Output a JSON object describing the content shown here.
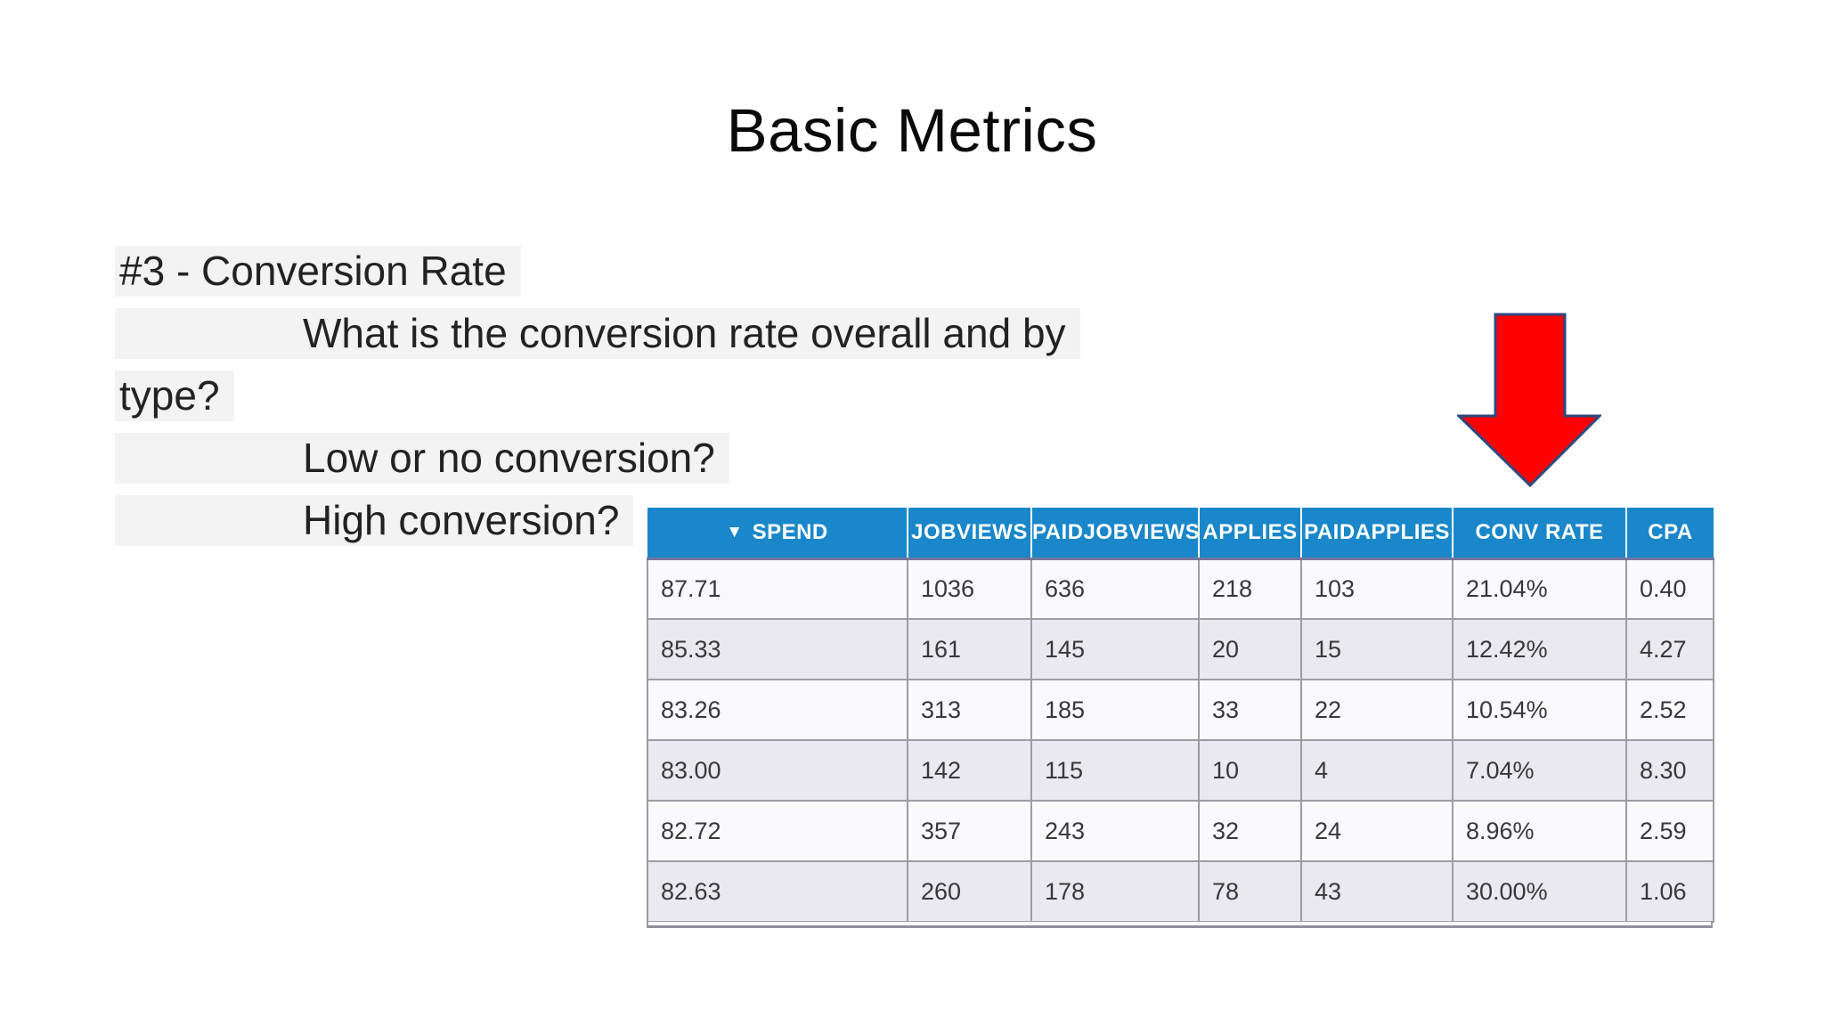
{
  "title": "Basic Metrics",
  "notes": [
    {
      "text": "#3 - Conversion Rate",
      "indent": false
    },
    {
      "text": "What is the conversion rate overall and by",
      "indent": true
    },
    {
      "text": "type?",
      "indent": false
    },
    {
      "text": "Low or no conversion?",
      "indent": true
    },
    {
      "text": "High conversion?",
      "indent": true
    }
  ],
  "table": {
    "columns": [
      {
        "label": "SPEND",
        "sort_icon": "▼",
        "sort_state": "descending"
      },
      {
        "label": "JOBVIEWS"
      },
      {
        "label": "PAIDJOBVIEWS"
      },
      {
        "label": "APPLIES"
      },
      {
        "label": "PAIDAPPLIES"
      },
      {
        "label": "CONV RATE"
      },
      {
        "label": "CPA"
      }
    ],
    "rows": [
      [
        "87.71",
        "1036",
        "636",
        "218",
        "103",
        "21.04%",
        "0.40"
      ],
      [
        "85.33",
        "161",
        "145",
        "20",
        "15",
        "12.42%",
        "4.27"
      ],
      [
        "83.26",
        "313",
        "185",
        "33",
        "22",
        "10.54%",
        "2.52"
      ],
      [
        "83.00",
        "142",
        "115",
        "10",
        "4",
        "7.04%",
        "8.30"
      ],
      [
        "82.72",
        "357",
        "243",
        "32",
        "24",
        "8.96%",
        "2.59"
      ],
      [
        "82.63",
        "260",
        "178",
        "78",
        "43",
        "30.00%",
        "1.06"
      ]
    ]
  },
  "icons": {
    "sort_desc": "▼",
    "red_arrow": "red-down-arrow"
  },
  "colors": {
    "header_bg": "#1987c9",
    "header_border": "#75759a",
    "row_odd": "#fafafd",
    "row_even": "#e9e9ef",
    "grid": "#9b9ca4",
    "highlight": "#f3f3f3",
    "arrow_fill": "#fe0000",
    "arrow_stroke": "#2a4a80"
  }
}
